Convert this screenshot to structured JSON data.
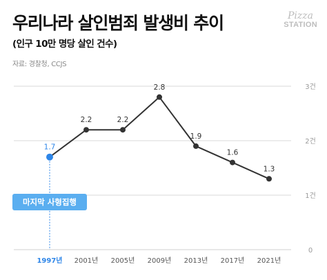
{
  "title": "우리나라 살인범죄 발생비 추이",
  "subtitle": "(인구 10만 명당 살인 건수)",
  "source": "자료: 경찰청, CCJS",
  "logo": {
    "line1": "Pizza",
    "line2": "STATION"
  },
  "colors": {
    "line": "#333333",
    "highlight": "#2e86e8",
    "grid": "#d9d9d9",
    "callout": "#5aaef0"
  },
  "callout": "마지막 사형집행",
  "chart_data": {
    "type": "line",
    "categories": [
      "1997년",
      "2001년",
      "2005년",
      "2009년",
      "2013년",
      "2017년",
      "2021년"
    ],
    "series": [
      {
        "values": [
          1.7,
          2.2,
          2.2,
          2.8,
          1.9,
          1.6,
          1.3
        ]
      }
    ],
    "data_labels": [
      "1.7",
      "2.2",
      "2.2",
      "2.8",
      "1.9",
      "1.6",
      "1.3"
    ],
    "y_ticks": [
      {
        "value": 0,
        "label": "0"
      },
      {
        "value": 1,
        "label": "1건"
      },
      {
        "value": 2,
        "label": "2건"
      },
      {
        "value": 3,
        "label": "3건"
      }
    ],
    "ylim": [
      0,
      3
    ],
    "y_axis_position": "right",
    "grid": true,
    "highlight_index": 0,
    "title": "우리나라 살인범죄 발생비 추이",
    "subtitle": "(인구 10만 명당 살인 건수)"
  }
}
